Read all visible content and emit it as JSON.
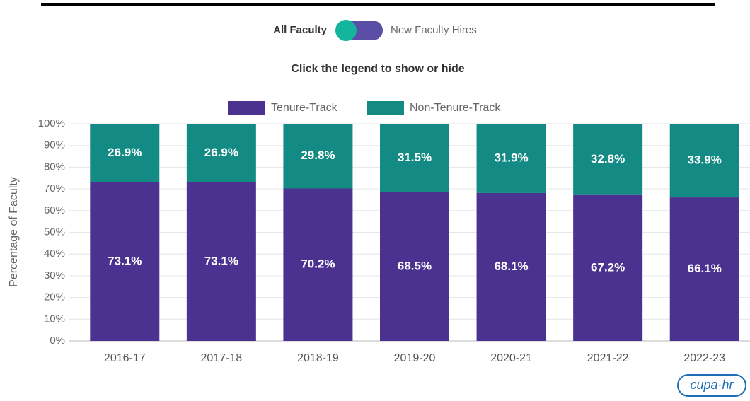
{
  "toggle": {
    "left": "All Faculty",
    "right": "New Faculty Hires"
  },
  "logo": "cupa·hr",
  "chart_data": {
    "type": "stacked_bar",
    "subtitle": "Click the legend to show or hide",
    "y_label": "Percentage of Faculty",
    "categories": [
      "2016-17",
      "2017-18",
      "2018-19",
      "2019-20",
      "2020-21",
      "2021-22",
      "2022-23"
    ],
    "series": [
      {
        "name": "Tenure-Track",
        "color": "#4b3190",
        "values": [
          73.1,
          73.1,
          70.2,
          68.5,
          68.1,
          67.2,
          66.1
        ],
        "value_labels": [
          "73.1%",
          "73.1%",
          "70.2%",
          "68.5%",
          "68.1%",
          "67.2%",
          "66.1%"
        ]
      },
      {
        "name": "Non-Tenure-Track",
        "color": "#138a83",
        "values": [
          26.9,
          26.9,
          29.8,
          31.5,
          31.9,
          32.8,
          33.9
        ],
        "value_labels": [
          "26.9%",
          "26.9%",
          "29.8%",
          "31.5%",
          "31.9%",
          "32.8%",
          "33.9%"
        ]
      }
    ],
    "ylim": [
      0,
      100
    ],
    "yticks": [
      {
        "value": 0,
        "label": "0%"
      },
      {
        "value": 10,
        "label": "10%"
      },
      {
        "value": 20,
        "label": "20%"
      },
      {
        "value": 30,
        "label": "30%"
      },
      {
        "value": 40,
        "label": "40%"
      },
      {
        "value": 50,
        "label": "50%"
      },
      {
        "value": 60,
        "label": "60%"
      },
      {
        "value": 70,
        "label": "70%"
      },
      {
        "value": 80,
        "label": "80%"
      },
      {
        "value": 90,
        "label": "90%"
      },
      {
        "value": 100,
        "label": "100%"
      }
    ],
    "grid": true,
    "legend": "top"
  }
}
